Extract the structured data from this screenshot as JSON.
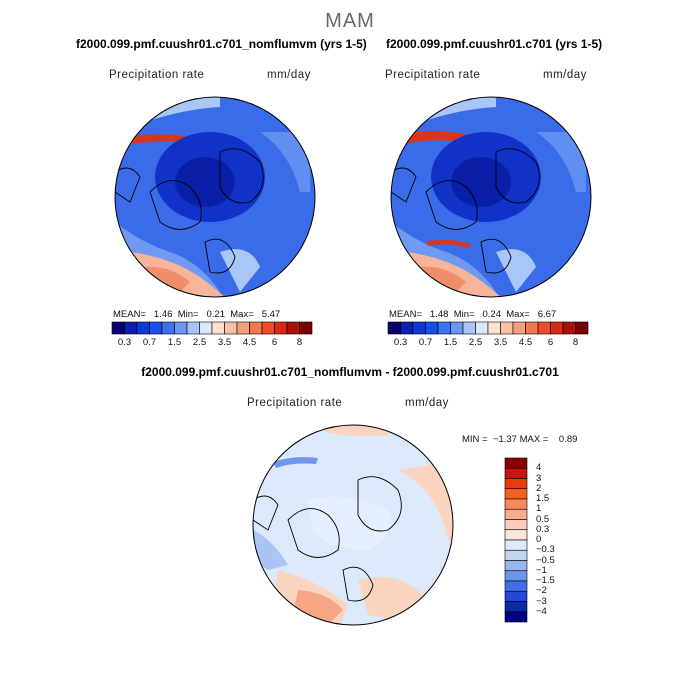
{
  "season": "MAM",
  "panels": [
    {
      "title": "f2000.099.pmf.cuushr01.c701_nomflumvm (yrs 1-5)",
      "variable": "Precipitation rate",
      "units": "mm/day",
      "stats": {
        "mean_label": "MEAN=",
        "mean": "1.46",
        "min_label": "Min=",
        "min": "0.21",
        "max_label": "Max=",
        "max": "5.47"
      }
    },
    {
      "title": "f2000.099.pmf.cuushr01.c701 (yrs 1-5)",
      "variable": "Precipitation rate",
      "units": "mm/day",
      "stats": {
        "mean_label": "MEAN=",
        "mean": "1.48",
        "min_label": "Min=",
        "min": "0.24",
        "max_label": "Max=",
        "max": "6.67"
      }
    }
  ],
  "diff_panel": {
    "title": "f2000.099.pmf.cuushr01.c701_nomflumvm - f2000.099.pmf.cuushr01.c701",
    "variable": "Precipitation rate",
    "units": "mm/day",
    "stats": {
      "min_label": "MIN =",
      "min": "−1.37",
      "max_label": "MAX =",
      "max": "0.89"
    }
  },
  "colorbar_abs": {
    "colors": [
      "#08006b",
      "#0a1fb0",
      "#0b3ad6",
      "#1651e8",
      "#3b72f0",
      "#6c98f4",
      "#a9c4f7",
      "#dbe8fb",
      "#fde3d1",
      "#f9c3a4",
      "#f6a07a",
      "#f2784f",
      "#ec4b2c",
      "#d42a16",
      "#a81207",
      "#780000"
    ],
    "tick_labels": [
      "0.3",
      "0.7",
      "1.5",
      "2.5",
      "3.5",
      "4.5",
      "6",
      "8"
    ]
  },
  "colorbar_diff": {
    "colors": [
      "#8b0000",
      "#c4160b",
      "#e8390f",
      "#f5601f",
      "#f6885c",
      "#f8ad8f",
      "#fbcdb8",
      "#fde7da",
      "#dfeafb",
      "#c2d6f5",
      "#96b6ef",
      "#6b94ec",
      "#3f6fe8",
      "#2148d6",
      "#0c2aa8",
      "#000080"
    ],
    "labels": [
      "4",
      "3",
      "2",
      "1.5",
      "1",
      "0.5",
      "0.3",
      "0",
      "−0.3",
      "−0.5",
      "−1",
      "−1.5",
      "−2",
      "−3",
      "−4"
    ]
  },
  "map_colors": {
    "deep": "#1132c9",
    "mid": "#2f5fe6",
    "light": "#5f8ff0",
    "pale": "#a8c6f6",
    "warm": "#f6b59b",
    "warm2": "#f08e6b",
    "red": "#d8361c",
    "diff_base": "#dce9fb",
    "diff_warm": "#fbd4c0",
    "diff_warm2": "#f5a684",
    "diff_cool": "#a9c4f5",
    "diff_cool2": "#6f97ee"
  }
}
